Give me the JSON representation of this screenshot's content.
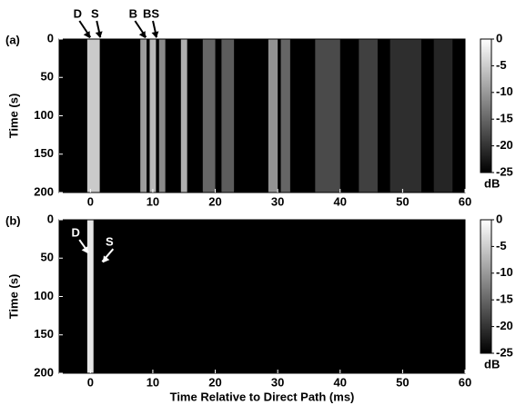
{
  "chart_data": [
    {
      "type": "heatmap",
      "label": "(a)",
      "ylabel": "Time (s)",
      "xlim": [
        -5,
        60
      ],
      "xticks": [
        0,
        10,
        20,
        30,
        40,
        50,
        60
      ],
      "ylim": [
        0,
        200
      ],
      "yticks": [
        0,
        50,
        100,
        150,
        200
      ],
      "colorbar": {
        "lim": [
          -25,
          0
        ],
        "ticks": [
          0,
          -5,
          -10,
          -15,
          -20,
          -25
        ],
        "label": "dB"
      },
      "annotations": [
        {
          "text": "D",
          "x": 0,
          "y": 0
        },
        {
          "text": "S",
          "x": 1.6,
          "y": 0
        },
        {
          "text": "B",
          "x": 8.9,
          "y": 0
        },
        {
          "text": "BS",
          "x": 10.6,
          "y": 0
        }
      ],
      "streaks": {
        "x_start": [
          -0.5,
          8,
          9.5,
          11,
          14.5,
          18,
          21,
          28.5,
          30.5,
          36,
          43,
          48,
          55
        ],
        "x_end": [
          1.5,
          9,
          10.5,
          12,
          15.5,
          20,
          23,
          30,
          32,
          40,
          46,
          53,
          58
        ],
        "values": [
          -3,
          -8,
          -5,
          -10,
          -6,
          -14,
          -15,
          -9,
          -14,
          -17,
          -18,
          -20,
          -21
        ]
      }
    },
    {
      "type": "heatmap",
      "label": "(b)",
      "ylabel": "Time (s)",
      "xlabel": "Time Relative to Direct Path (ms)",
      "xlim": [
        -5,
        60
      ],
      "xticks": [
        0,
        10,
        20,
        30,
        40,
        50,
        60
      ],
      "ylim": [
        0,
        200
      ],
      "yticks": [
        0,
        50,
        100,
        150,
        200
      ],
      "colorbar": {
        "lim": [
          -25,
          0
        ],
        "ticks": [
          0,
          -5,
          -10,
          -15,
          -20,
          -25
        ],
        "label": "dB"
      },
      "annotations": [
        {
          "text": "D",
          "x": -0.3,
          "y": 45
        },
        {
          "text": "S",
          "x": 1.9,
          "y": 57
        }
      ],
      "streaks": {
        "x_start": [
          -0.5
        ],
        "x_end": [
          0.5
        ],
        "values": [
          0
        ]
      }
    }
  ]
}
